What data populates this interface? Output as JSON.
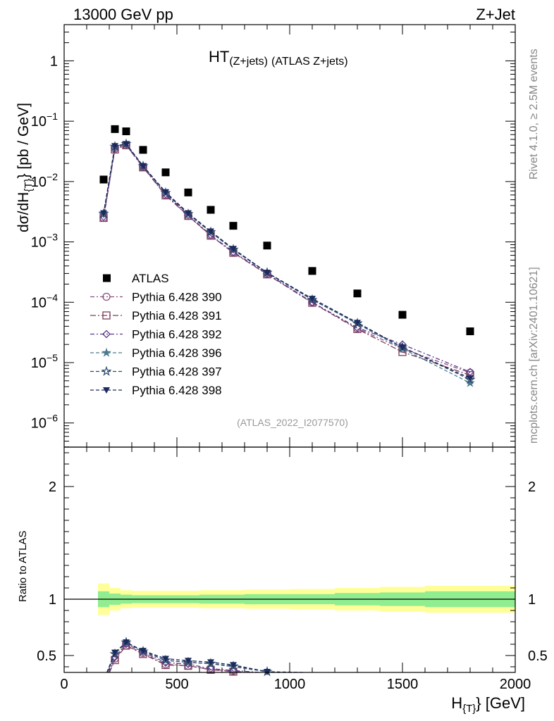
{
  "header": {
    "left": "13000 GeV pp",
    "right": "Z+Jet",
    "plot_title_main": "HT",
    "plot_title_sub": "(Z+jets)",
    "plot_title_rest": "(ATLAS Z+jets)",
    "analysis_id": "(ATLAS_2022_I2077570)"
  },
  "side_labels": {
    "rivet": "Rivet 4.1.0, ≥ 2.5M events",
    "mcplots": "mcplots.cern.ch [arXiv:2401.10621]"
  },
  "axes": {
    "ylabel_main": "dσ/dH",
    "ylabel_main_sub": "{T}",
    "ylabel_main_units": "} [pb / GeV]",
    "ylabel_ratio": "Ratio to ATLAS",
    "xlabel": "H",
    "xlabel_sub": "{T}",
    "xlabel_units": "} [GeV]",
    "xlim": [
      0,
      2000
    ],
    "ylim_main_log10": [
      -6.4,
      0.6
    ],
    "ylim_ratio": [
      0.35,
      2.35
    ],
    "xticks": [
      0,
      500,
      1000,
      1500,
      2000
    ],
    "yticks_main": [
      {
        "base": "1",
        "exp": ""
      },
      {
        "base": "10",
        "exp": "−1"
      },
      {
        "base": "10",
        "exp": "−2"
      },
      {
        "base": "10",
        "exp": "−3"
      },
      {
        "base": "10",
        "exp": "−4"
      },
      {
        "base": "10",
        "exp": "−5"
      },
      {
        "base": "10",
        "exp": "−6"
      }
    ],
    "yticks_main_values": [
      1,
      0.1,
      0.01,
      0.001,
      0.0001,
      1e-05,
      1e-06
    ],
    "yticks_ratio": [
      0.5,
      1,
      2
    ],
    "yticks_ratio_labels": [
      "0.5",
      "1",
      "2"
    ]
  },
  "chart_data": {
    "type": "scatter",
    "title": "HT(Z+jets) (ATLAS Z+jets)",
    "xlabel": "H_{T} [GeV]",
    "ylabel": "dσ/dH_{T} [pb / GeV]",
    "yscale": "log",
    "x": [
      175,
      225,
      275,
      350,
      450,
      550,
      650,
      750,
      900,
      1100,
      1300,
      1500,
      1800
    ],
    "bin_edges": [
      150,
      200,
      250,
      300,
      400,
      500,
      600,
      700,
      800,
      1000,
      1200,
      1400,
      1600,
      2000
    ],
    "data": {
      "name": "ATLAS",
      "values": [
        0.0108,
        0.074,
        0.068,
        0.0335,
        0.0142,
        0.0066,
        0.0034,
        0.00185,
        0.00087,
        0.00033,
        0.00014,
        6.2e-05,
        3.3e-05
      ]
    },
    "series": [
      {
        "name": "Pythia 6.428 390",
        "color": "#8c4d7d",
        "marker": "circle-open",
        "dash": "6,3,2,3",
        "values": [
          0.0025,
          0.035,
          0.04,
          0.0175,
          0.006,
          0.0027,
          0.00128,
          0.00067,
          0.000295,
          0.0001,
          3.7e-05,
          1.7e-05,
          6.8e-06
        ]
      },
      {
        "name": "Pythia 6.428 391",
        "color": "#7a3d5a",
        "marker": "square-open",
        "dash": "8,3,2,3",
        "values": [
          0.0025,
          0.034,
          0.04,
          0.0172,
          0.0059,
          0.0027,
          0.00127,
          0.00066,
          0.00029,
          9.8e-05,
          3.6e-05,
          1.5e-05,
          6.2e-06
        ]
      },
      {
        "name": "Pythia 6.428 392",
        "color": "#5a3a8c",
        "marker": "diamond-open",
        "dash": "6,3,2,3",
        "values": [
          0.0026,
          0.036,
          0.041,
          0.0178,
          0.0062,
          0.0028,
          0.0013,
          0.00068,
          0.0003,
          0.0001,
          3.8e-05,
          2e-05,
          7e-06
        ]
      },
      {
        "name": "Pythia 6.428 396",
        "color": "#4d7a8c",
        "marker": "star-filled",
        "dash": "5,3",
        "values": [
          0.003,
          0.038,
          0.042,
          0.018,
          0.0065,
          0.0029,
          0.00145,
          0.00074,
          0.00031,
          0.00011,
          4.4e-05,
          1.7e-05,
          4.6e-06
        ]
      },
      {
        "name": "Pythia 6.428 397",
        "color": "#2e4a6b",
        "marker": "star-open",
        "dash": "5,3",
        "values": [
          0.0029,
          0.038,
          0.042,
          0.018,
          0.0065,
          0.0029,
          0.00146,
          0.00075,
          0.00031,
          0.00011,
          4.5e-05,
          1.8e-05,
          5.2e-06
        ]
      },
      {
        "name": "Pythia 6.428 398",
        "color": "#1c2a5e",
        "marker": "triangle-down-filled",
        "dash": "5,3",
        "values": [
          0.003,
          0.039,
          0.042,
          0.0182,
          0.0067,
          0.003,
          0.0015,
          0.00077,
          0.00031,
          0.000115,
          4.6e-05,
          1.8e-05,
          5.5e-06
        ]
      }
    ],
    "ratio": {
      "ylabel": "Ratio to ATLAS",
      "band_inner": [
        0.07,
        0.05,
        0.04,
        0.035,
        0.035,
        0.035,
        0.04,
        0.04,
        0.045,
        0.045,
        0.055,
        0.06,
        0.07
      ],
      "band_outer": [
        0.14,
        0.1,
        0.08,
        0.075,
        0.075,
        0.075,
        0.08,
        0.08,
        0.085,
        0.09,
        0.1,
        0.11,
        0.12
      ],
      "band_inner_color": "#90ee90",
      "band_outer_color": "#ffff99"
    }
  }
}
